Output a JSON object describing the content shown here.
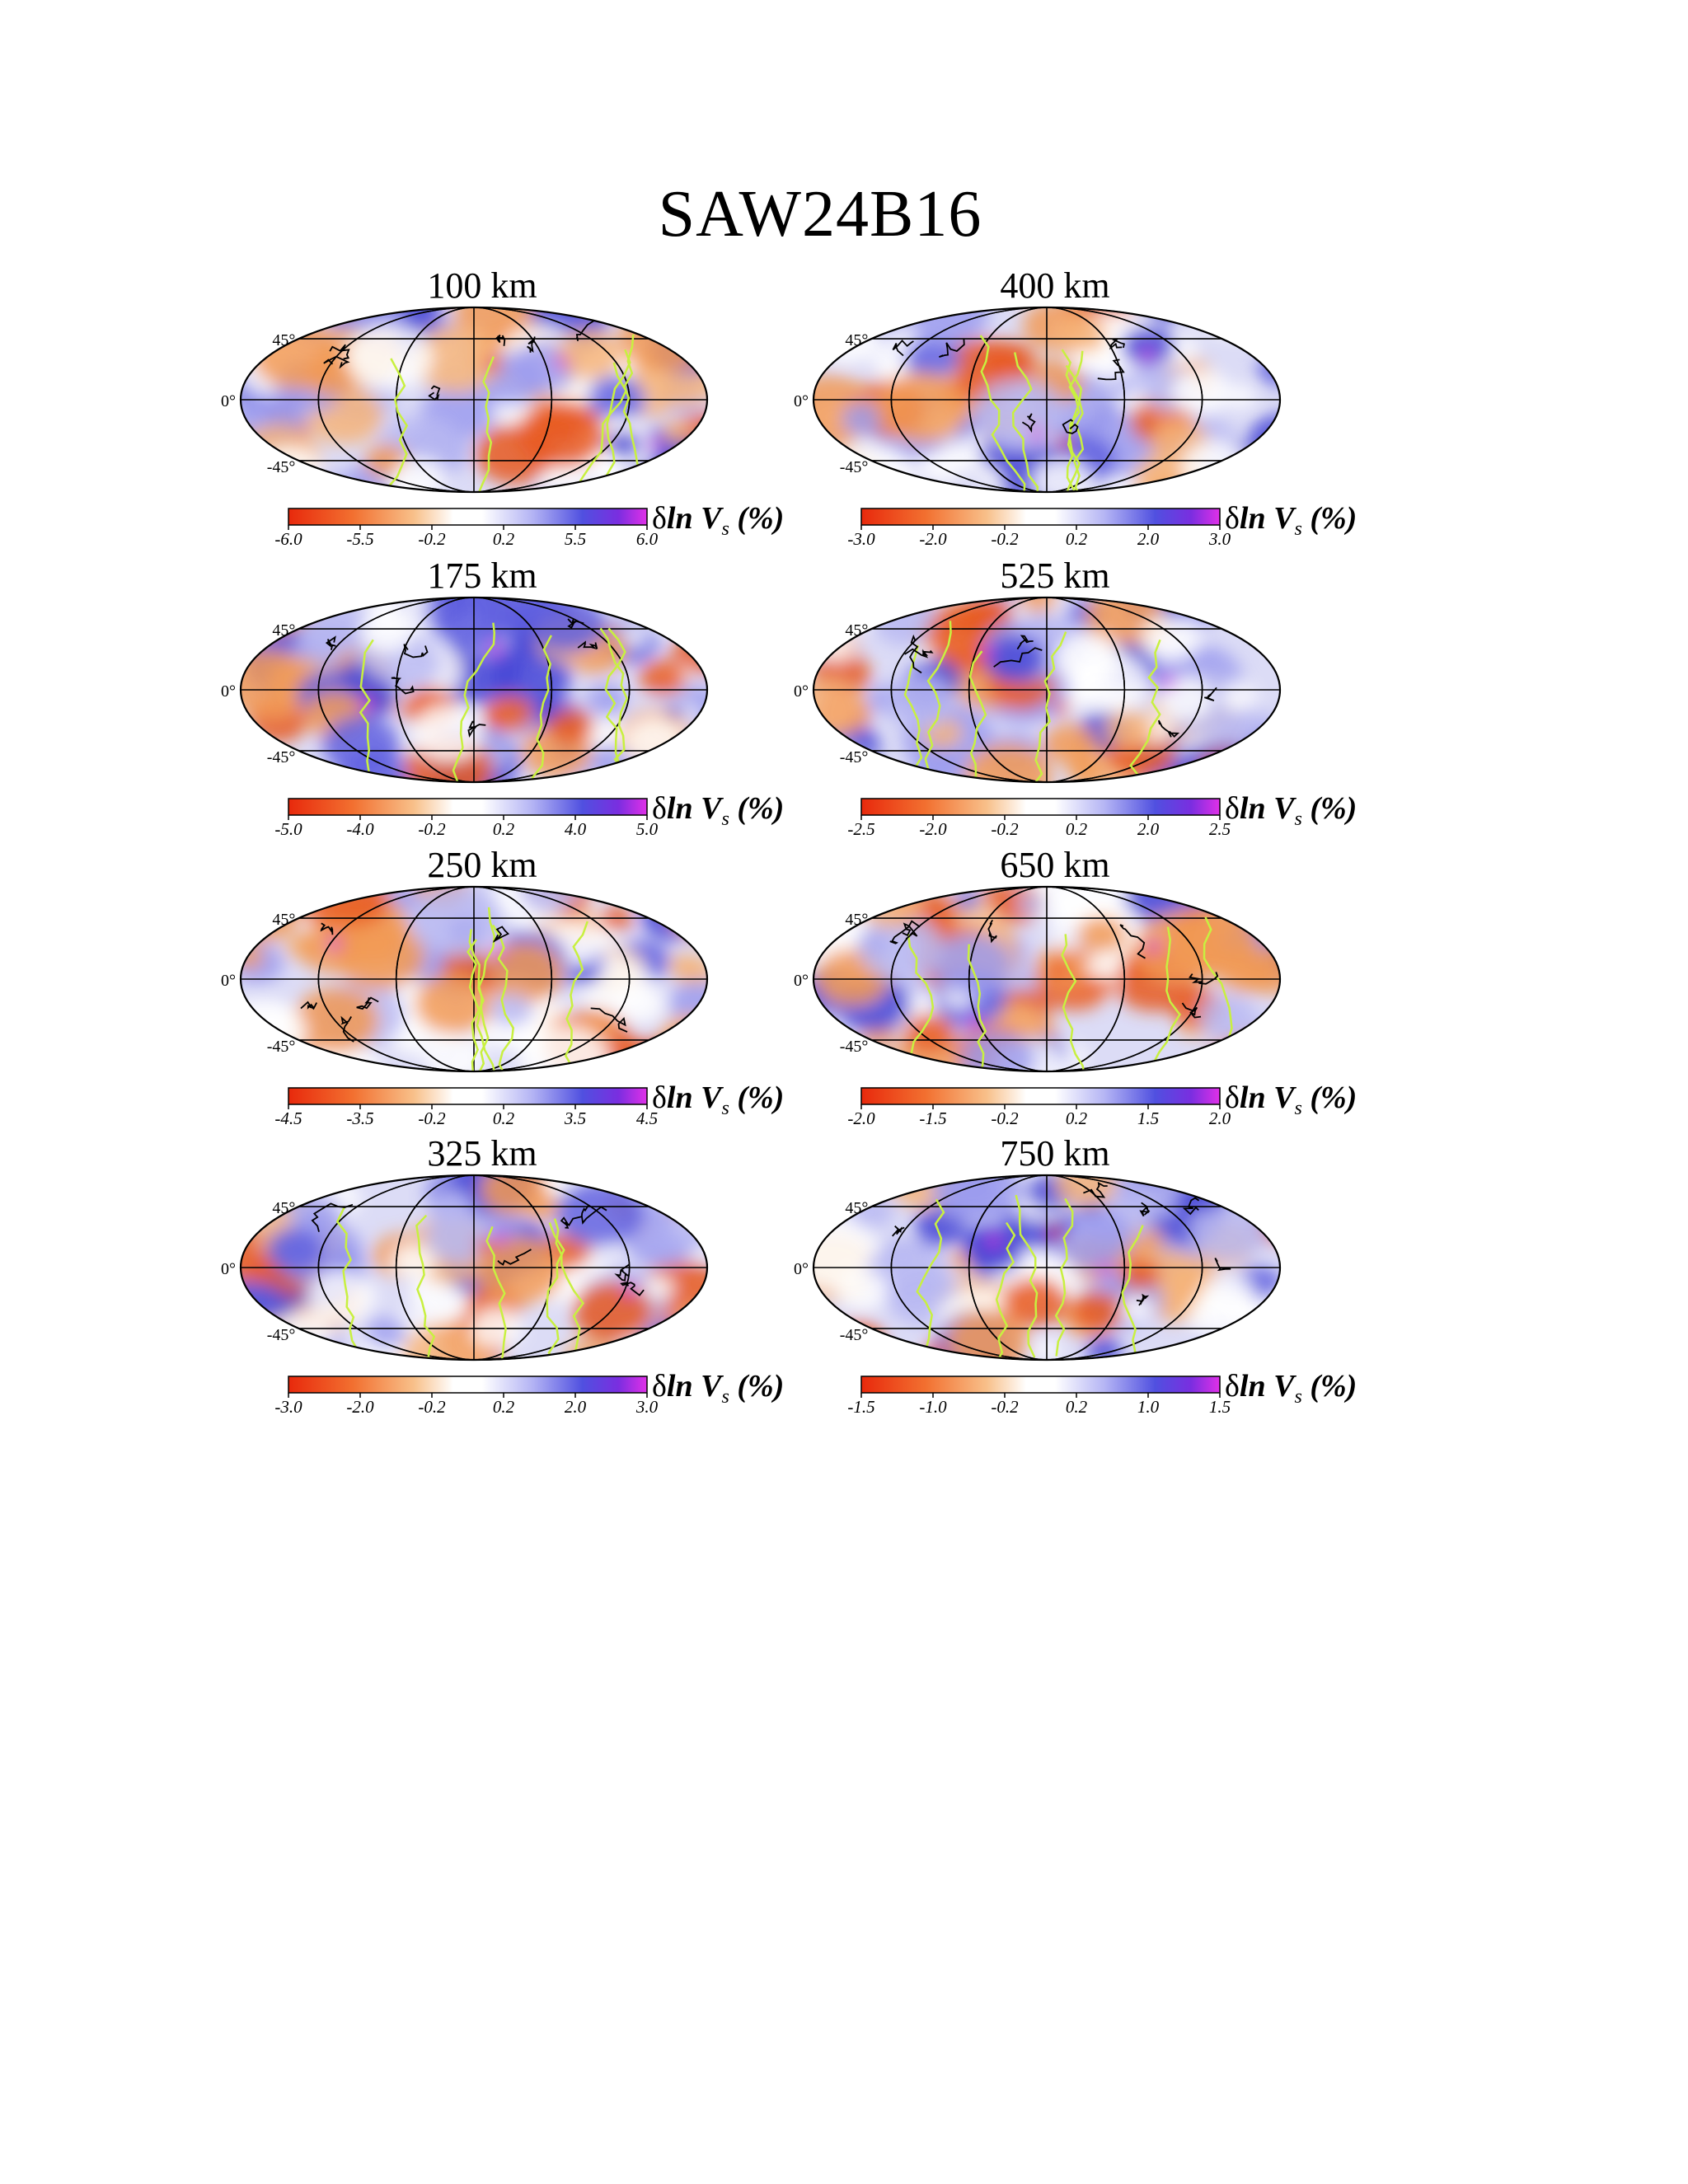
{
  "title": "SAW24B16",
  "colorbar_label": {
    "prefix": "δ",
    "ln": "ln",
    "v": "V",
    "sub": "s",
    "unit": "(%)"
  },
  "lat_labels": [
    "45°",
    "0°",
    "-45°"
  ],
  "colors": {
    "neg_strong": "#e8290c",
    "neg_mid": "#f5a15a",
    "neutral": "#ffffff",
    "pos_mid": "#6f6fe8",
    "pos_strong": "#d030e0",
    "plate_boundary": "#c8f040",
    "coastline": "#000000",
    "graticule": "#000000"
  },
  "panels": [
    {
      "depth": "100 km",
      "ticks": [
        "-6.0",
        "-5.5",
        "-0.2",
        "0.2",
        "5.5",
        "6.0"
      ]
    },
    {
      "depth": "400 km",
      "ticks": [
        "-3.0",
        "-2.0",
        "-0.2",
        "0.2",
        "2.0",
        "3.0"
      ]
    },
    {
      "depth": "175 km",
      "ticks": [
        "-5.0",
        "-4.0",
        "-0.2",
        "0.2",
        "4.0",
        "5.0"
      ]
    },
    {
      "depth": "525 km",
      "ticks": [
        "-2.5",
        "-2.0",
        "-0.2",
        "0.2",
        "2.0",
        "2.5"
      ]
    },
    {
      "depth": "250 km",
      "ticks": [
        "-4.5",
        "-3.5",
        "-0.2",
        "0.2",
        "3.5",
        "4.5"
      ]
    },
    {
      "depth": "650 km",
      "ticks": [
        "-2.0",
        "-1.5",
        "-0.2",
        "0.2",
        "1.5",
        "2.0"
      ]
    },
    {
      "depth": "325 km",
      "ticks": [
        "-3.0",
        "-2.0",
        "-0.2",
        "0.2",
        "2.0",
        "3.0"
      ]
    },
    {
      "depth": "750 km",
      "ticks": [
        "-1.5",
        "-1.0",
        "-0.2",
        "0.2",
        "1.0",
        "1.5"
      ]
    }
  ]
}
